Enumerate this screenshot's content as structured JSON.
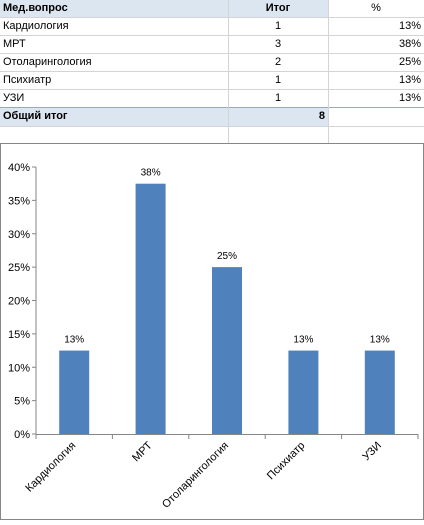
{
  "table": {
    "headers": [
      "Мед.вопрос",
      "Итог",
      "%"
    ],
    "rows": [
      {
        "name": "Кардиология",
        "count": "1",
        "pct": "13%"
      },
      {
        "name": "МРТ",
        "count": "3",
        "pct": "38%"
      },
      {
        "name": "Отоларингология",
        "count": "2",
        "pct": "25%"
      },
      {
        "name": "Психиатр",
        "count": "1",
        "pct": "13%"
      },
      {
        "name": "УЗИ",
        "count": "1",
        "pct": "13%"
      }
    ],
    "total_label": "Общий итог",
    "total_value": "8"
  },
  "chart_data": {
    "type": "bar",
    "categories": [
      "Кардиология",
      "МРТ",
      "Отоларингология",
      "Психиатр",
      "УЗИ"
    ],
    "values": [
      12.5,
      37.5,
      25,
      12.5,
      12.5
    ],
    "data_labels": [
      "13%",
      "38%",
      "25%",
      "13%",
      "13%"
    ],
    "y_ticks": [
      "0%",
      "5%",
      "10%",
      "15%",
      "20%",
      "25%",
      "30%",
      "35%",
      "40%"
    ],
    "ylim": [
      0,
      40
    ],
    "grid": false,
    "legend": "none",
    "bar_color": "#4f81bd"
  },
  "colors": {
    "header_fill": "#dce6f1",
    "bar": "#4f81bd"
  }
}
